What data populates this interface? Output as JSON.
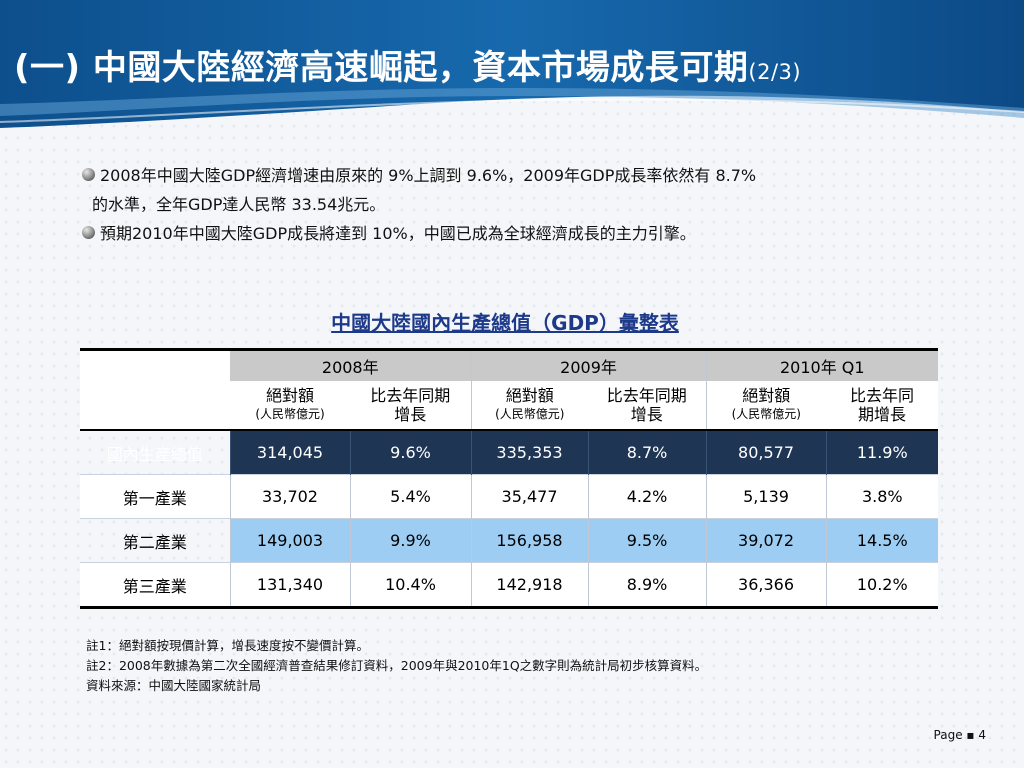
{
  "slide": {
    "title": "(一) 中國大陸經濟高速崛起，資本市場成長可期",
    "title_suffix": "(2/3)",
    "bullets": [
      "2008年中國大陸GDP經濟增速由原來的 9%上調到 9.6%，2009年GDP成長率依然有 8.7%",
      "的水準，全年GDP達人民幣 33.54兆元。",
      "預期2010年中國大陸GDP成長將達到 10%，中國已成為全球經濟成長的主力引擎。"
    ],
    "page_label": "Page ▪ 4"
  },
  "table": {
    "title": "中國大陸國內生產總值（GDP）彙整表",
    "years": [
      "2008年",
      "2009年",
      "2010年 Q1"
    ],
    "subheaders": [
      {
        "line1": "絕對額",
        "line2": "(人民幣億元)"
      },
      {
        "line1": "比去年同期",
        "line2": "增長"
      },
      {
        "line1": "絕對額",
        "line2": "(人民幣億元)"
      },
      {
        "line1": "比去年同期",
        "line2": "增長"
      },
      {
        "line1": "絕對額",
        "line2": "(人民幣億元)"
      },
      {
        "line1": "比去年同",
        "line2": "期增長"
      }
    ],
    "rows": [
      {
        "label": "國內生產總值",
        "values": [
          "314,045",
          "9.6%",
          "335,353",
          "8.7%",
          "80,577",
          "11.9%"
        ]
      },
      {
        "label": "第一產業",
        "values": [
          "33,702",
          "5.4%",
          "35,477",
          "4.2%",
          "5,139",
          "3.8%"
        ]
      },
      {
        "label": "第二產業",
        "values": [
          "149,003",
          "9.9%",
          "156,958",
          "9.5%",
          "39,072",
          "14.5%"
        ]
      },
      {
        "label": "第三產業",
        "values": [
          "131,340",
          "10.4%",
          "142,918",
          "8.9%",
          "36,366",
          "10.2%"
        ]
      }
    ]
  },
  "notes": [
    "註1：絕對額按現價計算，增長速度按不變價計算。",
    "註2：2008年數據為第二次全國經濟普查結果修訂資料，2009年與2010年1Q之數字則為統計局初步核算資料。",
    "資料來源：中國大陸國家統計局"
  ],
  "colors": {
    "header_blue": "#0f5c9c",
    "header_dark": "#0a3f73",
    "table_dark_row": "#1f3554",
    "table_blue_row": "#9dcdf3",
    "table_title": "#1d3a8a"
  }
}
